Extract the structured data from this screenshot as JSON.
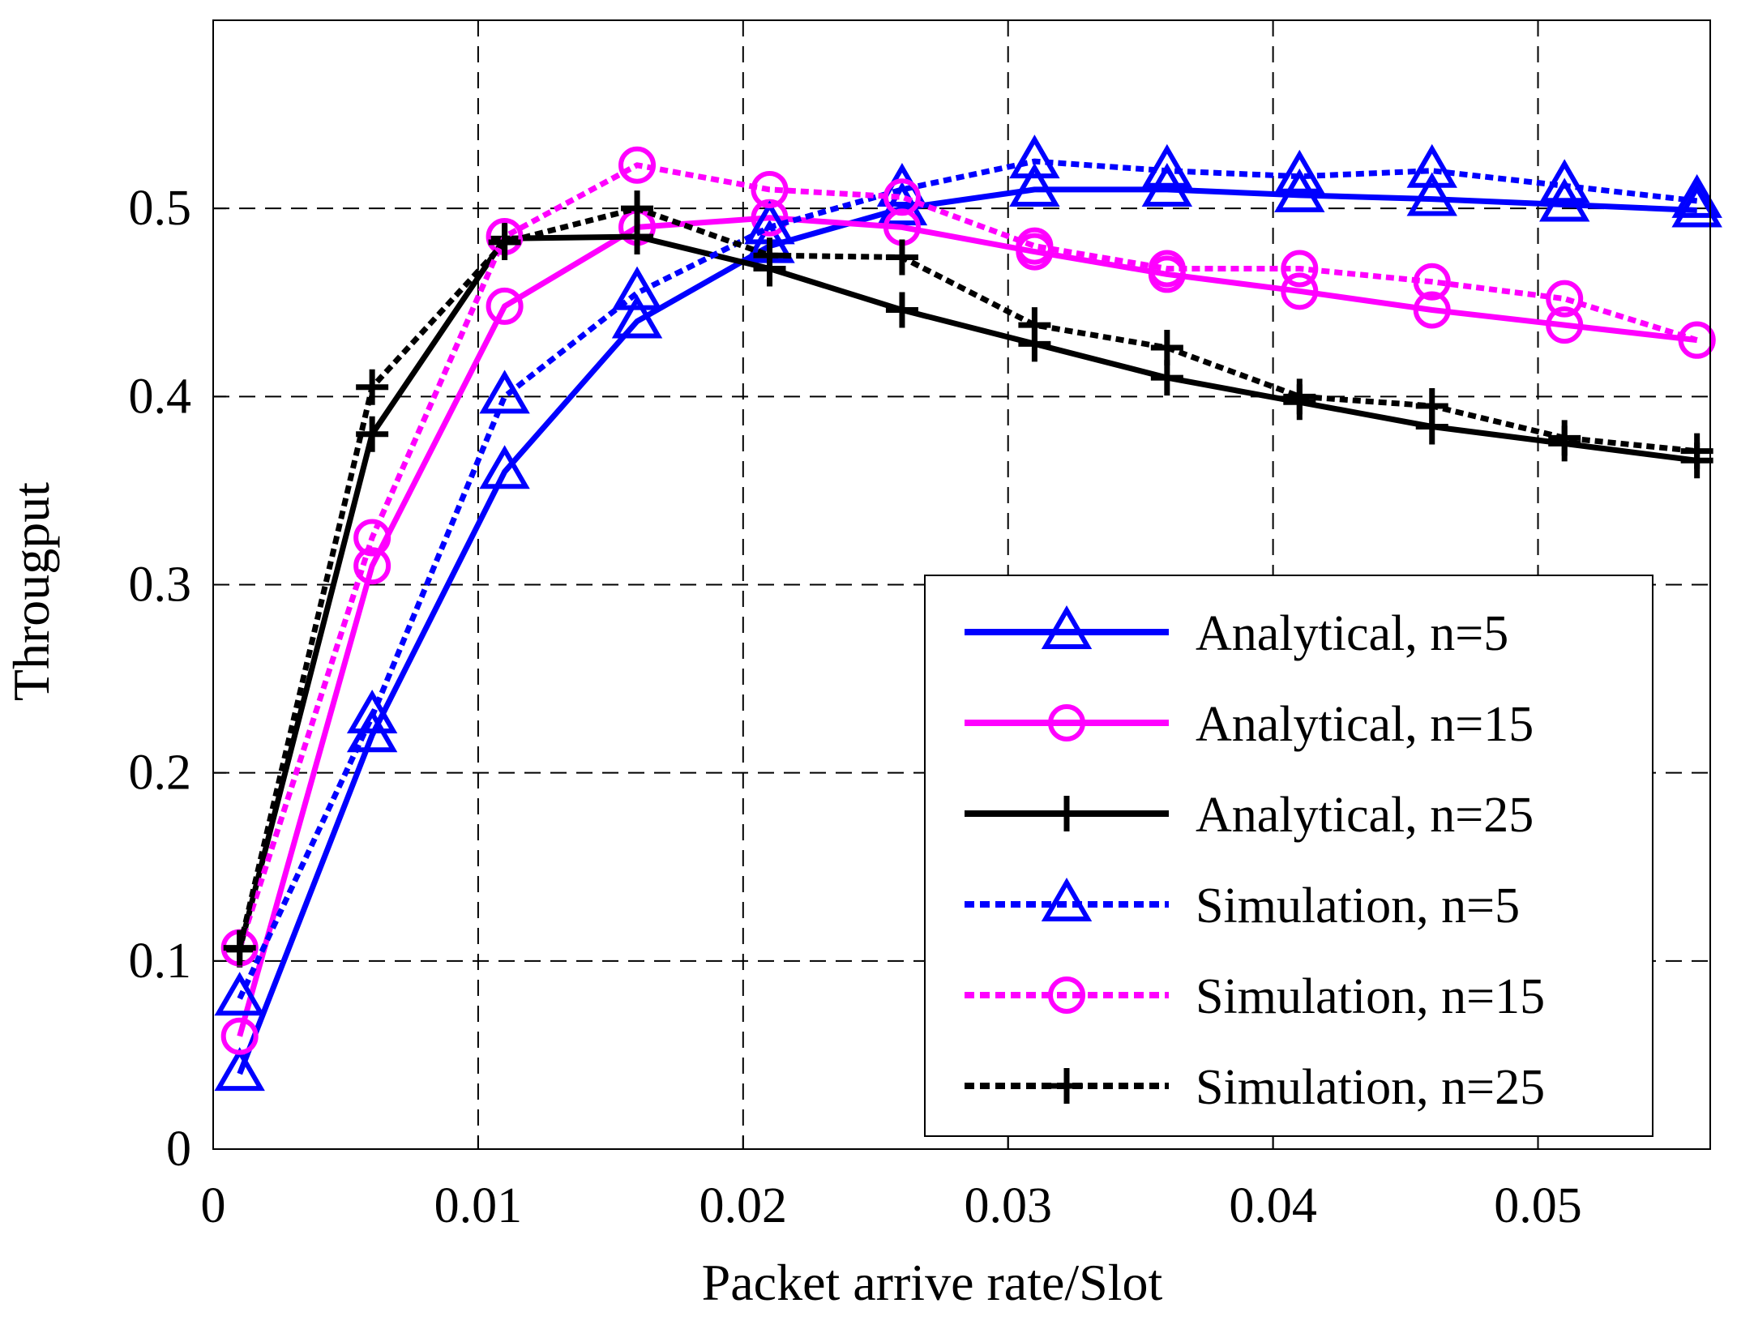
{
  "chart_data": {
    "type": "line",
    "title": "",
    "xlabel": "Packet arrive rate/Slot",
    "ylabel": "Througput",
    "xlim": [
      0,
      0.0565
    ],
    "ylim": [
      0,
      0.6
    ],
    "grid": true,
    "legend_position": "lower-right",
    "x_ticks": [
      0,
      0.01,
      0.02,
      0.03,
      0.04,
      0.05
    ],
    "x_tick_labels": [
      "0",
      "0.01",
      "0.02",
      "0.03",
      "0.04",
      "0.05"
    ],
    "y_ticks": [
      0,
      0.1,
      0.2,
      0.3,
      0.4,
      0.5
    ],
    "y_tick_labels": [
      "0",
      "0.1",
      "0.2",
      "0.3",
      "0.4",
      "0.5"
    ],
    "x": [
      0.001,
      0.006,
      0.011,
      0.016,
      0.021,
      0.026,
      0.031,
      0.036,
      0.041,
      0.046,
      0.051,
      0.056
    ],
    "series": [
      {
        "name": "Analytical, n=5",
        "color": "#0000ff",
        "dash": "solid",
        "marker": "triangle",
        "values": [
          0.04,
          0.22,
          0.36,
          0.44,
          0.48,
          0.5,
          0.51,
          0.51,
          0.507,
          0.505,
          0.502,
          0.499
        ]
      },
      {
        "name": "Analytical, n=15",
        "color": "#ff00ff",
        "dash": "solid",
        "marker": "circle",
        "values": [
          0.06,
          0.31,
          0.448,
          0.49,
          0.495,
          0.49,
          0.477,
          0.465,
          0.456,
          0.446,
          0.438,
          0.43
        ]
      },
      {
        "name": "Analytical, n=25",
        "color": "#000000",
        "dash": "solid",
        "marker": "plus",
        "values": [
          0.106,
          0.38,
          0.484,
          0.485,
          0.468,
          0.446,
          0.428,
          0.41,
          0.397,
          0.384,
          0.375,
          0.366
        ]
      },
      {
        "name": "Simulation, n=5",
        "color": "#0000ff",
        "dash": "dotted",
        "marker": "triangle",
        "values": [
          0.08,
          0.23,
          0.4,
          0.455,
          0.49,
          0.51,
          0.525,
          0.52,
          0.517,
          0.52,
          0.512,
          0.504
        ]
      },
      {
        "name": "Simulation, n=15",
        "color": "#ff00ff",
        "dash": "dotted",
        "marker": "circle",
        "values": [
          0.107,
          0.325,
          0.485,
          0.523,
          0.51,
          0.506,
          0.48,
          0.468,
          0.468,
          0.461,
          0.452,
          0.43
        ]
      },
      {
        "name": "Simulation, n=25",
        "color": "#000000",
        "dash": "dotted",
        "marker": "plus",
        "values": [
          0.107,
          0.405,
          0.482,
          0.5,
          0.475,
          0.474,
          0.438,
          0.426,
          0.4,
          0.395,
          0.378,
          0.371
        ]
      }
    ]
  }
}
